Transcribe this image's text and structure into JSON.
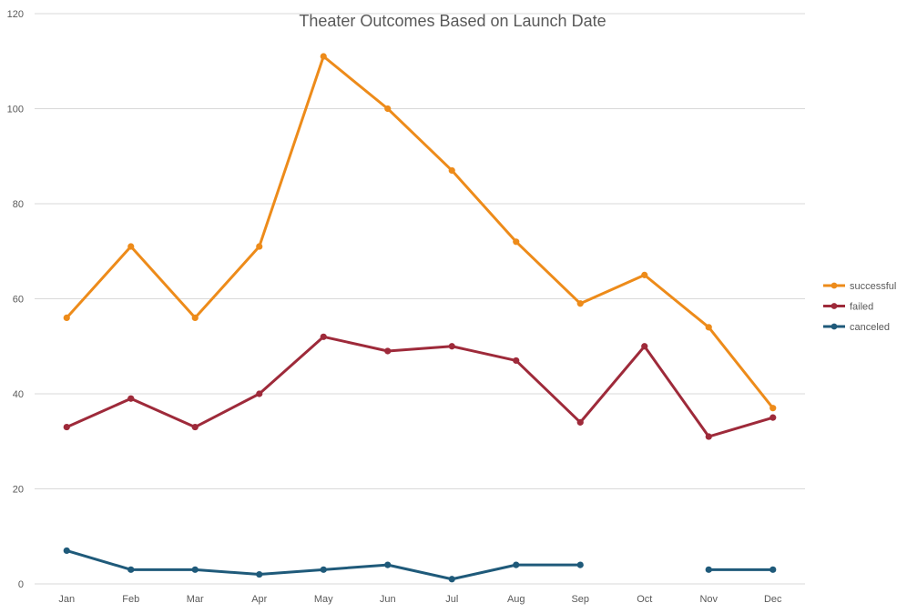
{
  "chart_data": {
    "type": "line",
    "title": "Theater Outcomes Based on Launch Date",
    "categories": [
      "Jan",
      "Feb",
      "Mar",
      "Apr",
      "May",
      "Jun",
      "Jul",
      "Aug",
      "Sep",
      "Oct",
      "Nov",
      "Dec"
    ],
    "ylim": [
      0,
      120
    ],
    "yticks": [
      "0",
      "20",
      "40",
      "60",
      "80",
      "100",
      "120"
    ],
    "grid": true,
    "legend": "right",
    "series": [
      {
        "name": "successful",
        "color": "#ed8b1a",
        "values": [
          56,
          71,
          56,
          71,
          111,
          100,
          87,
          72,
          59,
          65,
          54,
          37
        ]
      },
      {
        "name": "failed",
        "color": "#9e2a3a",
        "values": [
          33,
          39,
          33,
          40,
          52,
          49,
          50,
          47,
          34,
          50,
          31,
          35
        ]
      },
      {
        "name": "canceled",
        "color": "#1f5a7a",
        "values": [
          7,
          3,
          3,
          2,
          3,
          4,
          1,
          4,
          4,
          null,
          3,
          3
        ]
      }
    ]
  }
}
